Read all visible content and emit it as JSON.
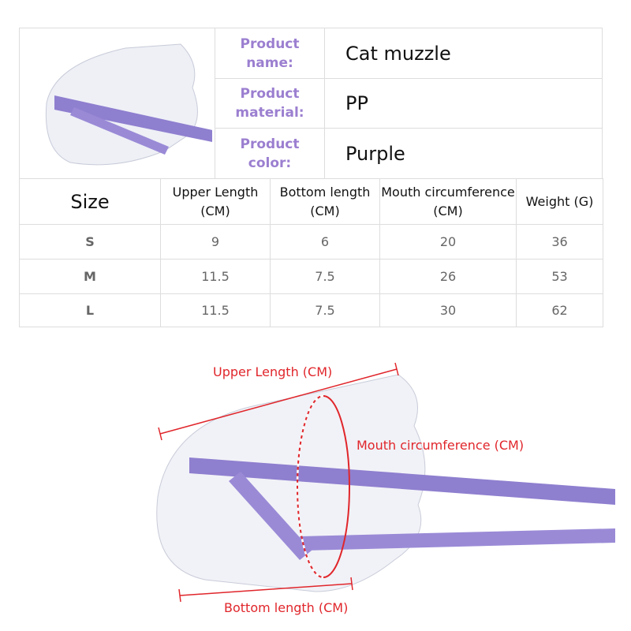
{
  "info": [
    {
      "label": "Product name:",
      "value": "Cat muzzle"
    },
    {
      "label": "Product material:",
      "value": "PP"
    },
    {
      "label": "Product color:",
      "value": "Purple"
    }
  ],
  "table": {
    "headers": [
      "Size",
      "Upper Length (CM)",
      "Bottom length (CM)",
      "Mouth circumference (CM)",
      "Weight (G)"
    ],
    "rows": [
      [
        "S",
        "9",
        "6",
        "20",
        "36"
      ],
      [
        "M",
        "11.5",
        "7.5",
        "26",
        "53"
      ],
      [
        "L",
        "11.5",
        "7.5",
        "30",
        "62"
      ]
    ]
  },
  "diagram": {
    "upper": "Upper Length (CM)",
    "mouth": "Mouth circumference (CM)",
    "bottom": "Bottom length (CM)",
    "annotation_color": "#e0262b",
    "strap_color": "#9a8ad6"
  }
}
